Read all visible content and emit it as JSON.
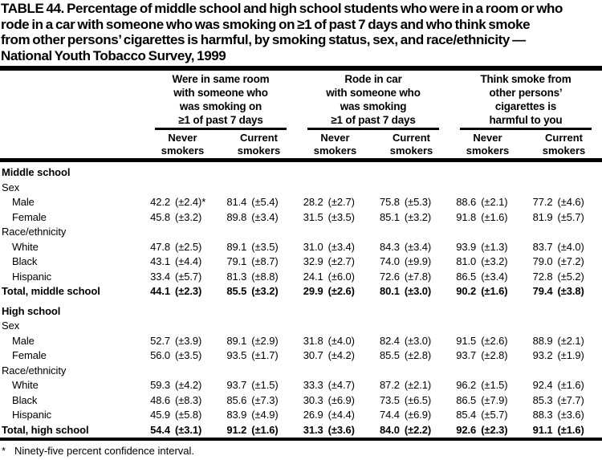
{
  "title": {
    "text": "TABLE 44. Percentage of middle school and high school students who were in a room or who\nrode in a car with someone who was smoking on ≥1 of past 7 days and who think smoke\nfrom other persons’ cigarettes is harmful, by smoking status, sex, and race/ethnicity —\nNational Youth Tobacco Survey, 1999"
  },
  "table": {
    "col_groups": [
      {
        "header": "Were in same room\nwith someone who\nwas smoking on\n≥1 of past 7 days",
        "sub_headers": [
          "Never\nsmokers",
          "Current\nsmokers"
        ]
      },
      {
        "header": "Rode in car\nwith someone who\nwas smoking\n≥1 of past 7 days",
        "sub_headers": [
          "Never\nsmokers",
          "Current\nsmokers"
        ]
      },
      {
        "header": "Think smoke from\nother persons’\ncigarettes is\nharmful to you",
        "sub_headers": [
          "Never\nsmokers",
          "Current\nsmokers"
        ]
      }
    ],
    "rows": [
      {
        "label": "Middle school",
        "style": "section"
      },
      {
        "label": "Sex",
        "style": "plain"
      },
      {
        "label": "Male",
        "style": "indent",
        "cells": [
          [
            "42.2",
            "(±2.4)*"
          ],
          [
            "81.4",
            "(±5.4)"
          ],
          [
            "28.2",
            "(±2.7)"
          ],
          [
            "75.8",
            "(±5.3)"
          ],
          [
            "88.6",
            "(±2.1)"
          ],
          [
            "77.2",
            "(±4.6)"
          ]
        ]
      },
      {
        "label": "Female",
        "style": "indent",
        "cells": [
          [
            "45.8",
            "(±3.2)"
          ],
          [
            "89.8",
            "(±3.4)"
          ],
          [
            "31.5",
            "(±3.5)"
          ],
          [
            "85.1",
            "(±3.2)"
          ],
          [
            "91.8",
            "(±1.6)"
          ],
          [
            "81.9",
            "(±5.7)"
          ]
        ]
      },
      {
        "label": "Race/ethnicity",
        "style": "plain"
      },
      {
        "label": "White",
        "style": "indent",
        "cells": [
          [
            "47.8",
            "(±2.5)"
          ],
          [
            "89.1",
            "(±3.5)"
          ],
          [
            "31.0",
            "(±3.4)"
          ],
          [
            "84.3",
            "(±3.4)"
          ],
          [
            "93.9",
            "(±1.3)"
          ],
          [
            "83.7",
            "(±4.0)"
          ]
        ]
      },
      {
        "label": "Black",
        "style": "indent",
        "cells": [
          [
            "43.1",
            "(±4.4)"
          ],
          [
            "79.1",
            "(±8.7)"
          ],
          [
            "32.9",
            "(±2.7)"
          ],
          [
            "74.0",
            "(±9.9)"
          ],
          [
            "81.0",
            "(±3.2)"
          ],
          [
            "79.0",
            "(±7.2)"
          ]
        ]
      },
      {
        "label": "Hispanic",
        "style": "indent",
        "cells": [
          [
            "33.4",
            "(±5.7)"
          ],
          [
            "81.3",
            "(±8.8)"
          ],
          [
            "24.1",
            "(±6.0)"
          ],
          [
            "72.6",
            "(±7.8)"
          ],
          [
            "86.5",
            "(±3.4)"
          ],
          [
            "72.8",
            "(±5.2)"
          ]
        ]
      },
      {
        "label": "Total, middle school",
        "style": "total",
        "cells": [
          [
            "44.1",
            "(±2.3)"
          ],
          [
            "85.5",
            "(±3.2)"
          ],
          [
            "29.9",
            "(±2.6)"
          ],
          [
            "80.1",
            "(±3.0)"
          ],
          [
            "90.2",
            "(±1.6)"
          ],
          [
            "79.4",
            "(±3.8)"
          ]
        ]
      },
      {
        "label": "High school",
        "style": "section",
        "gap": true
      },
      {
        "label": "Sex",
        "style": "plain"
      },
      {
        "label": "Male",
        "style": "indent",
        "cells": [
          [
            "52.7",
            "(±3.9)"
          ],
          [
            "89.1",
            "(±2.9)"
          ],
          [
            "31.8",
            "(±4.0)"
          ],
          [
            "82.4",
            "(±3.0)"
          ],
          [
            "91.5",
            "(±2.6)"
          ],
          [
            "88.9",
            "(±2.1)"
          ]
        ]
      },
      {
        "label": "Female",
        "style": "indent",
        "cells": [
          [
            "56.0",
            "(±3.5)"
          ],
          [
            "93.5",
            "(±1.7)"
          ],
          [
            "30.7",
            "(±4.2)"
          ],
          [
            "85.5",
            "(±2.8)"
          ],
          [
            "93.7",
            "(±2.8)"
          ],
          [
            "93.2",
            "(±1.9)"
          ]
        ]
      },
      {
        "label": "Race/ethnicity",
        "style": "plain"
      },
      {
        "label": "White",
        "style": "indent",
        "cells": [
          [
            "59.3",
            "(±4.2)"
          ],
          [
            "93.7",
            "(±1.5)"
          ],
          [
            "33.3",
            "(±4.7)"
          ],
          [
            "87.2",
            "(±2.1)"
          ],
          [
            "96.2",
            "(±1.5)"
          ],
          [
            "92.4",
            "(±1.6)"
          ]
        ]
      },
      {
        "label": "Black",
        "style": "indent",
        "cells": [
          [
            "48.6",
            "(±8.3)"
          ],
          [
            "85.6",
            "(±7.3)"
          ],
          [
            "30.3",
            "(±6.9)"
          ],
          [
            "73.5",
            "(±6.5)"
          ],
          [
            "86.5",
            "(±7.9)"
          ],
          [
            "85.3",
            "(±7.7)"
          ]
        ]
      },
      {
        "label": "Hispanic",
        "style": "indent",
        "cells": [
          [
            "45.9",
            "(±5.8)"
          ],
          [
            "83.9",
            "(±4.9)"
          ],
          [
            "26.9",
            "(±4.4)"
          ],
          [
            "74.4",
            "(±6.9)"
          ],
          [
            "85.4",
            "(±5.7)"
          ],
          [
            "88.3",
            "(±3.6)"
          ]
        ]
      },
      {
        "label": "Total, high school",
        "style": "total",
        "cells": [
          [
            "54.4",
            "(±3.1)"
          ],
          [
            "91.2",
            "(±1.6)"
          ],
          [
            "31.3",
            "(±3.6)"
          ],
          [
            "84.0",
            "(±2.2)"
          ],
          [
            "92.6",
            "(±2.3)"
          ],
          [
            "91.1",
            "(±1.6)"
          ]
        ]
      }
    ]
  },
  "footnote": {
    "marker": "*",
    "text": "Ninety-five percent confidence interval."
  }
}
